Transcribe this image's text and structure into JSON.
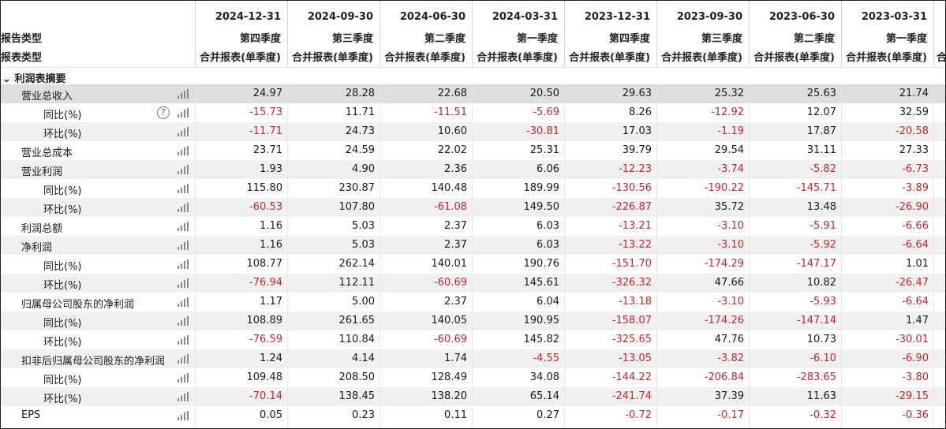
{
  "header": {
    "left_labels": [
      "报告类型",
      "报表类型"
    ],
    "columns": [
      {
        "date": "2024-12-31",
        "quarter": "第四季度",
        "type": "合并报表(单季度)"
      },
      {
        "date": "2024-09-30",
        "quarter": "第三季度",
        "type": "合并报表(单季度)"
      },
      {
        "date": "2024-06-30",
        "quarter": "第二季度",
        "type": "合并报表(单季度)"
      },
      {
        "date": "2024-03-31",
        "quarter": "第一季度",
        "type": "合并报表(单季度)"
      },
      {
        "date": "2023-12-31",
        "quarter": "第四季度",
        "type": "合并报表(单季度)"
      },
      {
        "date": "2023-09-30",
        "quarter": "第三季度",
        "type": "合并报表(单季度)"
      },
      {
        "date": "2023-06-30",
        "quarter": "第二季度",
        "type": "合并报表(单季度)"
      },
      {
        "date": "2023-03-31",
        "quarter": "第一季度",
        "type": "合并报表(单季度)"
      }
    ],
    "overflow_glyph": "合"
  },
  "section": {
    "arrow": "⌄",
    "label": "利润表摘要"
  },
  "rows": [
    {
      "label": "营业总收入",
      "indent": 1,
      "help": false,
      "values": [
        "24.97",
        "28.28",
        "22.68",
        "20.50",
        "29.63",
        "25.32",
        "25.63",
        "21.74"
      ]
    },
    {
      "label": "同比(%)",
      "indent": 2,
      "help": true,
      "help_glyph": "?",
      "values": [
        "-15.73",
        "11.71",
        "-11.51",
        "-5.69",
        "8.26",
        "-12.92",
        "12.07",
        "32.59"
      ]
    },
    {
      "label": "环比(%)",
      "indent": 2,
      "help": false,
      "values": [
        "-11.71",
        "24.73",
        "10.60",
        "-30.81",
        "17.03",
        "-1.19",
        "17.87",
        "-20.58"
      ]
    },
    {
      "label": "营业总成本",
      "indent": 1,
      "help": false,
      "values": [
        "23.71",
        "24.59",
        "22.02",
        "25.31",
        "39.79",
        "29.54",
        "31.11",
        "27.33"
      ]
    },
    {
      "label": "营业利润",
      "indent": 1,
      "help": false,
      "values": [
        "1.93",
        "4.90",
        "2.36",
        "6.06",
        "-12.23",
        "-3.74",
        "-5.82",
        "-6.73"
      ]
    },
    {
      "label": "同比(%)",
      "indent": 2,
      "help": false,
      "values": [
        "115.80",
        "230.87",
        "140.48",
        "189.99",
        "-130.56",
        "-190.22",
        "-145.71",
        "-3.89"
      ]
    },
    {
      "label": "环比(%)",
      "indent": 2,
      "help": false,
      "values": [
        "-60.53",
        "107.80",
        "-61.08",
        "149.50",
        "-226.87",
        "35.72",
        "13.48",
        "-26.90"
      ]
    },
    {
      "label": "利润总额",
      "indent": 1,
      "help": false,
      "values": [
        "1.16",
        "5.03",
        "2.37",
        "6.03",
        "-13.21",
        "-3.10",
        "-5.91",
        "-6.66"
      ]
    },
    {
      "label": "净利润",
      "indent": 1,
      "help": false,
      "values": [
        "1.16",
        "5.03",
        "2.37",
        "6.03",
        "-13.22",
        "-3.10",
        "-5.92",
        "-6.64"
      ]
    },
    {
      "label": "同比(%)",
      "indent": 2,
      "help": false,
      "values": [
        "108.77",
        "262.14",
        "140.01",
        "190.76",
        "-151.70",
        "-174.29",
        "-147.17",
        "1.01"
      ]
    },
    {
      "label": "环比(%)",
      "indent": 2,
      "help": false,
      "values": [
        "-76.94",
        "112.11",
        "-60.69",
        "145.61",
        "-326.32",
        "47.66",
        "10.82",
        "-26.47"
      ]
    },
    {
      "label": "归属母公司股东的净利润",
      "indent": 1,
      "help": false,
      "values": [
        "1.17",
        "5.00",
        "2.37",
        "6.04",
        "-13.18",
        "-3.10",
        "-5.93",
        "-6.64"
      ]
    },
    {
      "label": "同比(%)",
      "indent": 2,
      "help": false,
      "values": [
        "108.89",
        "261.65",
        "140.05",
        "190.95",
        "-158.07",
        "-174.26",
        "-147.14",
        "1.47"
      ]
    },
    {
      "label": "环比(%)",
      "indent": 2,
      "help": false,
      "values": [
        "-76.59",
        "110.84",
        "-60.69",
        "145.82",
        "-325.65",
        "47.76",
        "10.73",
        "-30.01"
      ]
    },
    {
      "label": "扣非后归属母公司股东的净利润",
      "indent": 1,
      "help": false,
      "values": [
        "1.24",
        "4.14",
        "1.74",
        "-4.55",
        "-13.05",
        "-3.82",
        "-6.10",
        "-6.90"
      ]
    },
    {
      "label": "同比(%)",
      "indent": 2,
      "help": false,
      "values": [
        "109.48",
        "208.50",
        "128.49",
        "34.08",
        "-144.22",
        "-206.84",
        "-283.65",
        "-3.80"
      ]
    },
    {
      "label": "环比(%)",
      "indent": 2,
      "help": false,
      "values": [
        "-70.14",
        "138.45",
        "138.20",
        "65.14",
        "-241.74",
        "37.39",
        "11.63",
        "-29.15"
      ]
    },
    {
      "label": "EPS",
      "indent": 1,
      "help": false,
      "values": [
        "0.05",
        "0.23",
        "0.11",
        "0.27",
        "-0.72",
        "-0.17",
        "-0.32",
        "-0.36"
      ]
    }
  ],
  "colors": {
    "negative": "#c0282d",
    "positive": "#1a1a1a",
    "selected_row": "#dedede",
    "alt_row": "#f0f0f0"
  },
  "icons": {
    "row_chart": "bar-chart-icon",
    "help": "help-circle-icon",
    "collapse": "chevron-down-icon"
  }
}
